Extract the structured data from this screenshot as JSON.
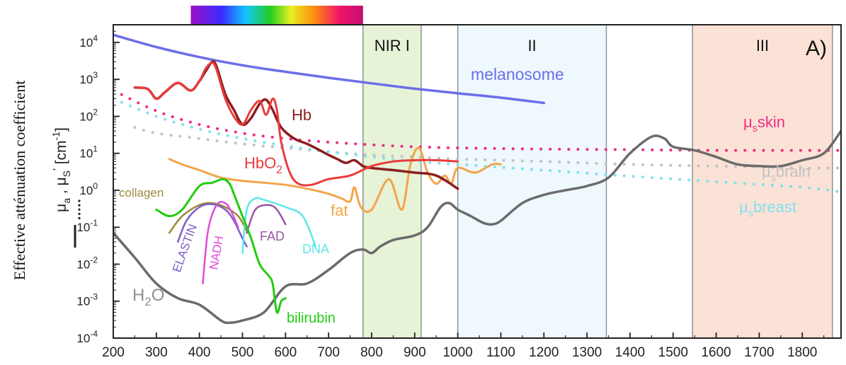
{
  "chart_data": {
    "type": "line",
    "title": "",
    "panel_label": "A)",
    "outer_ylabel": "Effective atténuation coefficient",
    "ylabel_line1": "μa , μS' [cm⁻¹]",
    "ylabel": {
      "mu": "μ",
      "a": "a",
      "comma": " , ",
      "s": "S",
      "prime": "'",
      "unit": "[cm",
      "exp": "-1",
      "close": "]"
    },
    "xlabel": "",
    "x_scale": "linear",
    "y_scale": "log",
    "xlim": [
      200,
      1890
    ],
    "ylim": [
      0.0001,
      30000
    ],
    "x_ticks": [
      200,
      300,
      400,
      500,
      600,
      700,
      800,
      900,
      1000,
      1100,
      1200,
      1300,
      1400,
      1500,
      1600,
      1700,
      1800
    ],
    "y_ticks": [
      {
        "value": 10000,
        "base": "10",
        "exp": "4"
      },
      {
        "value": 1000,
        "base": "10",
        "exp": "3"
      },
      {
        "value": 100,
        "base": "10",
        "exp": "2"
      },
      {
        "value": 10,
        "base": "10",
        "exp": "1"
      },
      {
        "value": 1,
        "base": "10",
        "exp": "0"
      },
      {
        "value": 0.1,
        "base": "10",
        "exp": "-1"
      },
      {
        "value": 0.01,
        "base": "10",
        "exp": "-2"
      },
      {
        "value": 0.001,
        "base": "10",
        "exp": "-3"
      },
      {
        "value": 0.0001,
        "base": "10",
        "exp": "-4"
      }
    ],
    "regions": [
      {
        "label": "NIR I",
        "x0": 780,
        "x1": 915,
        "color": "#e6f3d6"
      },
      {
        "label": "II",
        "x0": 1000,
        "x1": 1345,
        "color": "#eef8fd"
      },
      {
        "label": "III",
        "x0": 1545,
        "x1": 1870,
        "color": "#fbe2d6"
      }
    ],
    "visible_spectrum": {
      "x0": 380,
      "x1": 780
    },
    "series": [
      {
        "name": "melanosome",
        "color": "#6b6fe8",
        "style": "solid",
        "width": 3.5,
        "x": [
          200,
          300,
          400,
          500,
          600,
          700,
          800,
          900,
          1000,
          1100,
          1200
        ],
        "y": [
          16000,
          7500,
          4000,
          2400,
          1600,
          1100,
          780,
          560,
          420,
          320,
          230
        ]
      },
      {
        "name": "Hb",
        "color": "#8b1e1e",
        "style": "solid",
        "width": 3.5,
        "x": [
          250,
          280,
          300,
          320,
          350,
          380,
          400,
          415,
          430,
          440,
          460,
          480,
          500,
          520,
          540,
          555,
          570,
          590,
          620,
          650,
          680,
          700,
          720,
          740,
          760,
          780,
          800,
          850,
          900,
          950,
          1000
        ],
        "y": [
          600,
          550,
          300,
          450,
          800,
          500,
          900,
          1700,
          3000,
          2200,
          400,
          150,
          60,
          90,
          220,
          280,
          150,
          50,
          25,
          18,
          12,
          9,
          7,
          5.5,
          6.5,
          4.5,
          4,
          3.5,
          3,
          2.5,
          1.1
        ]
      },
      {
        "name": "HbO2",
        "color": "#ea3b3b",
        "style": "solid",
        "width": 3,
        "x": [
          250,
          280,
          300,
          320,
          350,
          380,
          400,
          415,
          430,
          440,
          460,
          480,
          500,
          520,
          540,
          555,
          570,
          580,
          590,
          610,
          630,
          660,
          700,
          750,
          800,
          850,
          900,
          950,
          1000
        ],
        "y": [
          600,
          550,
          300,
          450,
          800,
          500,
          900,
          2000,
          2800,
          1800,
          300,
          100,
          60,
          150,
          260,
          110,
          300,
          150,
          20,
          3,
          1.5,
          1.4,
          2,
          2.5,
          4.5,
          6,
          6.5,
          6.5,
          6
        ]
      },
      {
        "name": "fat",
        "color": "#f4a44a",
        "style": "solid",
        "width": 3,
        "x": [
          330,
          360,
          400,
          450,
          500,
          550,
          600,
          650,
          700,
          730,
          750,
          760,
          775,
          800,
          840,
          870,
          890,
          910,
          930,
          950,
          970,
          985,
          1000,
          1040,
          1080,
          1100
        ],
        "y": [
          7,
          5,
          3.5,
          2.2,
          1.8,
          1.6,
          1.4,
          1.1,
          0.8,
          0.6,
          0.5,
          1.2,
          0.35,
          0.3,
          2,
          0.3,
          5,
          14,
          3,
          1.5,
          2.5,
          1.5,
          4,
          3,
          5,
          5
        ]
      },
      {
        "name": "H2O",
        "color": "#6b6b6b",
        "style": "solid",
        "width": 3.5,
        "x": [
          200,
          250,
          300,
          350,
          400,
          450,
          470,
          500,
          550,
          600,
          650,
          700,
          750,
          780,
          800,
          820,
          850,
          900,
          930,
          960,
          980,
          1000,
          1030,
          1060,
          1080,
          1100,
          1150,
          1200,
          1250,
          1300,
          1350,
          1400,
          1450,
          1480,
          1500,
          1550,
          1600,
          1650,
          1700,
          1750,
          1800,
          1850,
          1890
        ],
        "y": [
          0.07,
          0.015,
          0.003,
          0.0012,
          0.0008,
          0.0003,
          0.00026,
          0.0003,
          0.0005,
          0.0025,
          0.003,
          0.007,
          0.02,
          0.025,
          0.02,
          0.03,
          0.045,
          0.06,
          0.1,
          0.35,
          0.45,
          0.3,
          0.2,
          0.13,
          0.12,
          0.15,
          0.45,
          0.75,
          1.0,
          1.3,
          2.2,
          10,
          28,
          25,
          15,
          12,
          8,
          5,
          4.5,
          4.5,
          6.5,
          10,
          40
        ]
      },
      {
        "name": "collagen",
        "color": "#9b8a3a",
        "style": "solid",
        "width": 2.5,
        "x": [
          330,
          360,
          400,
          430,
          460,
          490,
          510
        ],
        "y": [
          0.07,
          0.2,
          0.4,
          0.45,
          0.35,
          0.2,
          0.08
        ]
      },
      {
        "name": "ELASTIN",
        "color": "#7d5fc4",
        "style": "solid",
        "width": 2.5,
        "x": [
          350,
          370,
          400,
          430,
          460,
          480,
          500,
          510
        ],
        "y": [
          0.04,
          0.15,
          0.35,
          0.42,
          0.3,
          0.15,
          0.05,
          0.03
        ]
      },
      {
        "name": "NADH",
        "color": "#e24ad8",
        "style": "solid",
        "width": 2.5,
        "x": [
          408,
          420,
          440,
          460,
          475,
          490
        ],
        "y": [
          0.003,
          0.08,
          0.4,
          0.45,
          0.25,
          0.1
        ]
      },
      {
        "name": "FAD",
        "color": "#9a53a6",
        "style": "solid",
        "width": 2.5,
        "x": [
          510,
          530,
          560,
          580,
          600
        ],
        "y": [
          0.07,
          0.3,
          0.4,
          0.3,
          0.12
        ]
      },
      {
        "name": "DNA",
        "color": "#5ee6ea",
        "style": "solid",
        "width": 2.5,
        "x": [
          500,
          510,
          530,
          550,
          600,
          640,
          670
        ],
        "y": [
          0.02,
          0.3,
          0.6,
          0.55,
          0.35,
          0.2,
          0.03
        ]
      },
      {
        "name": "bilirubin",
        "color": "#22cc11",
        "style": "solid",
        "width": 3,
        "x": [
          300,
          330,
          360,
          400,
          430,
          455,
          470,
          480,
          500,
          520,
          540,
          560,
          570,
          580,
          590,
          600
        ],
        "y": [
          0.3,
          0.2,
          0.3,
          1.3,
          1.6,
          2,
          1.5,
          0.8,
          0.2,
          0.05,
          0.01,
          0.005,
          0.003,
          0.0005,
          0.001,
          0.0012
        ]
      },
      {
        "name": "μs skin",
        "color": "#ef2c83",
        "style": "dotted",
        "width": 4,
        "x": [
          200,
          300,
          400,
          500,
          600,
          700,
          800,
          900,
          1000,
          1200,
          1400,
          1600,
          1800,
          1890
        ],
        "y": [
          500,
          140,
          60,
          35,
          25,
          20,
          17,
          15,
          14,
          13,
          12.5,
          12,
          12,
          12
        ]
      },
      {
        "name": "μs brain",
        "color": "#c2c2c2",
        "style": "dotted",
        "width": 4,
        "x": [
          250,
          300,
          400,
          500,
          600,
          700,
          800,
          900,
          1000,
          1200,
          1400,
          1600,
          1800,
          1890
        ],
        "y": [
          50,
          35,
          25,
          18,
          14,
          11,
          9,
          8,
          7,
          6,
          5,
          4.5,
          4,
          4
        ]
      },
      {
        "name": "μs breast",
        "color": "#7fe1ef",
        "style": "dotted",
        "width": 4,
        "x": [
          200,
          300,
          400,
          500,
          600,
          700,
          800,
          900,
          1000,
          1200,
          1400,
          1600,
          1800,
          1890
        ],
        "y": [
          300,
          100,
          45,
          25,
          16,
          11,
          8,
          6,
          5,
          3.5,
          2.4,
          1.7,
          1.2,
          0.9
        ]
      }
    ],
    "labels": [
      {
        "text": "melanosome",
        "color": "#6b6fe8",
        "x": 665,
        "y": 113,
        "size": 23
      },
      {
        "text": "Hb",
        "color": "#8b1e1e",
        "x": 412,
        "y": 170,
        "size": 22
      },
      {
        "text": "HbO",
        "sub": "2",
        "color": "#ea3b3b",
        "x": 345,
        "y": 238,
        "size": 22
      },
      {
        "text": "fat",
        "color": "#f4a44a",
        "x": 467,
        "y": 305,
        "size": 22
      },
      {
        "text": "collagen",
        "color": "#9b8a3a",
        "x": 168,
        "y": 278,
        "size": 17
      },
      {
        "text": "FAD",
        "color": "#9a53a6",
        "x": 367,
        "y": 340,
        "size": 18
      },
      {
        "text": "DNA",
        "color": "#5ee6ea",
        "x": 427,
        "y": 358,
        "size": 18
      },
      {
        "text": "bilirubin",
        "color": "#22cc11",
        "x": 405,
        "y": 456,
        "size": 20
      },
      {
        "text": "H",
        "sub": "2",
        "tail": "O",
        "color": "#8f8f8f",
        "x": 187,
        "y": 425,
        "size": 24
      },
      {
        "text": "skin",
        "prefix": "μ",
        "sub": "s",
        "color": "#ef2c83",
        "x": 1050,
        "y": 180,
        "size": 22
      },
      {
        "text": "brain",
        "prefix": "μ",
        "sub": "s",
        "color": "#c2c2c2",
        "x": 1076,
        "y": 250,
        "size": 22
      },
      {
        "text": "breast",
        "prefix": "μ",
        "sub": "s",
        "color": "#7fe1ef",
        "x": 1044,
        "y": 300,
        "size": 22
      }
    ],
    "rotated_labels": [
      {
        "text": "ELASTIN",
        "color": "#7d5fc4",
        "x": 254,
        "y": 386,
        "size": 17,
        "angle": -70
      },
      {
        "text": "NADH",
        "color": "#e24ad8",
        "x": 307,
        "y": 382,
        "size": 17,
        "angle": -80
      }
    ],
    "grid": false
  }
}
